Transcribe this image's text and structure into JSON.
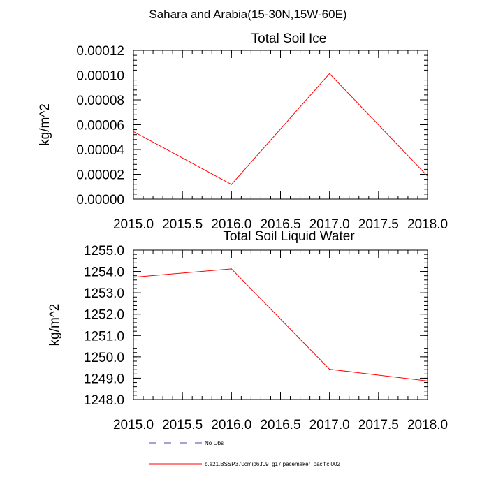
{
  "figure_title": "Sahara and Arabia(15-30N,15W-60E)",
  "legend": {
    "entries": [
      {
        "label": "No Obs",
        "color": "#4444aa",
        "style": "dashed"
      },
      {
        "label": "b.e21.BSSP370cmip6.f09_g17.pacemaker_pacific.002",
        "color": "#ff0000",
        "style": "solid"
      }
    ]
  },
  "chart_data": [
    {
      "type": "line",
      "title": "Total Soil Ice",
      "xlabel": "",
      "ylabel": "kg/m^2",
      "xlim": [
        2015.0,
        2018.0
      ],
      "ylim": [
        0.0,
        0.00012
      ],
      "x_ticks": [
        2015.0,
        2015.5,
        2016.0,
        2016.5,
        2017.0,
        2017.5,
        2018.0
      ],
      "x_tick_labels": [
        "2015.0",
        "2015.5",
        "2016.0",
        "2016.5",
        "2017.0",
        "2017.5",
        "2018.0"
      ],
      "y_ticks": [
        0.0,
        2e-05,
        4e-05,
        6e-05,
        8e-05,
        0.0001,
        0.00012
      ],
      "y_tick_labels": [
        "0.00000",
        "0.00002",
        "0.00004",
        "0.00006",
        "0.00008",
        "0.00010",
        "0.00012"
      ],
      "x_minor_step": 0.1,
      "y_minor_step": 4e-06,
      "grid": false,
      "series": [
        {
          "name": "b.e21.BSSP370cmip6.f09_g17.pacemaker_pacific.002",
          "color": "#ff0000",
          "x": [
            2015.0,
            2016.0,
            2017.0,
            2018.0
          ],
          "values": [
            5.45e-05,
            1.18e-05,
            0.0001012,
            1.85e-05
          ]
        }
      ]
    },
    {
      "type": "line",
      "title": "Total Soil Liquid Water",
      "xlabel": "",
      "ylabel": "kg/m^2",
      "xlim": [
        2015.0,
        2018.0
      ],
      "ylim": [
        1248.0,
        1255.0
      ],
      "x_ticks": [
        2015.0,
        2015.5,
        2016.0,
        2016.5,
        2017.0,
        2017.5,
        2018.0
      ],
      "x_tick_labels": [
        "2015.0",
        "2015.5",
        "2016.0",
        "2016.5",
        "2017.0",
        "2017.5",
        "2018.0"
      ],
      "y_ticks": [
        1248.0,
        1249.0,
        1250.0,
        1251.0,
        1252.0,
        1253.0,
        1254.0,
        1255.0
      ],
      "y_tick_labels": [
        "1248.0",
        "1249.0",
        "1250.0",
        "1251.0",
        "1252.0",
        "1253.0",
        "1254.0",
        "1255.0"
      ],
      "x_minor_step": 0.1,
      "y_minor_step": 0.2,
      "grid": false,
      "series": [
        {
          "name": "b.e21.BSSP370cmip6.f09_g17.pacemaker_pacific.002",
          "color": "#ff0000",
          "x": [
            2015.0,
            2016.0,
            2017.0,
            2018.0
          ],
          "values": [
            1253.73,
            1254.12,
            1249.42,
            1248.87
          ]
        }
      ]
    }
  ]
}
